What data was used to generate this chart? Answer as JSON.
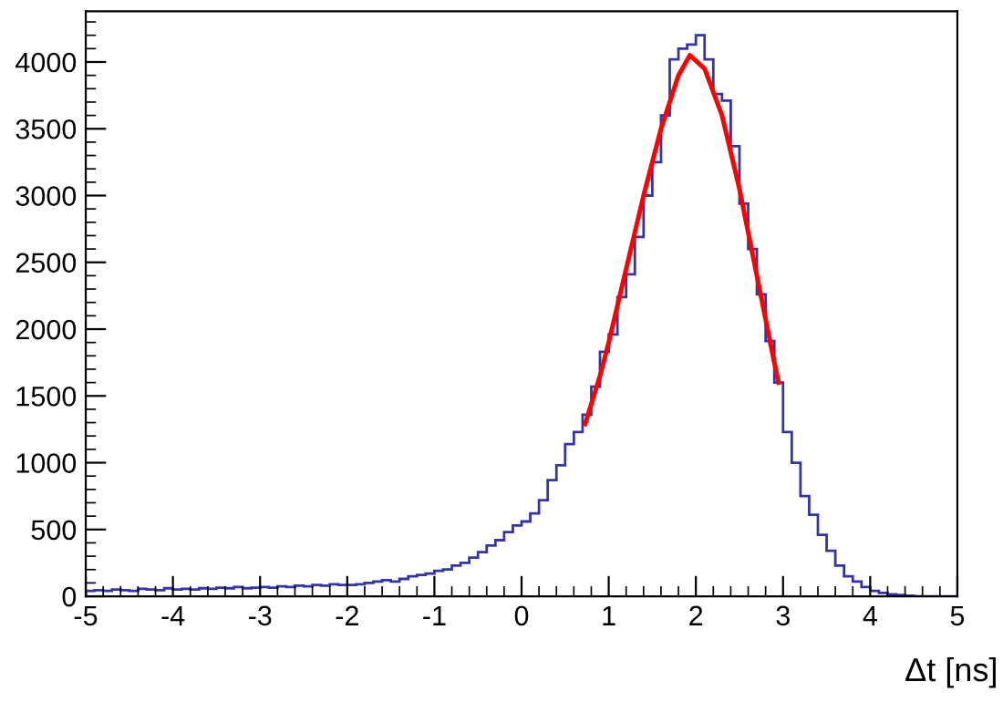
{
  "chart_data": {
    "type": "histogram",
    "xlabel": "Δt [ns]",
    "color": "#3434a4",
    "bins": [
      -5.0,
      -4.9,
      -4.8,
      -4.7,
      -4.6,
      -4.5,
      -4.4,
      -4.3,
      -4.2,
      -4.1,
      -4.0,
      -3.9,
      -3.8,
      -3.7,
      -3.6,
      -3.5,
      -3.4,
      -3.3,
      -3.2,
      -3.1,
      -3.0,
      -2.9,
      -2.8,
      -2.7,
      -2.6,
      -2.5,
      -2.4,
      -2.3,
      -2.2,
      -2.1,
      -2.0,
      -1.9,
      -1.8,
      -1.7,
      -1.6,
      -1.5,
      -1.4,
      -1.3,
      -1.2,
      -1.1,
      -1.0,
      -0.9,
      -0.8,
      -0.7,
      -0.6,
      -0.5,
      -0.4,
      -0.3,
      -0.2,
      -0.1,
      0.0,
      0.1,
      0.2,
      0.3,
      0.4,
      0.5,
      0.6,
      0.7,
      0.8,
      0.9,
      1.0,
      1.1,
      1.2,
      1.3,
      1.4,
      1.5,
      1.6,
      1.7,
      1.8,
      1.9,
      2.0,
      2.1,
      2.2,
      2.3,
      2.4,
      2.5,
      2.6,
      2.7,
      2.8,
      2.9,
      3.0,
      3.1,
      3.2,
      3.3,
      3.4,
      3.5,
      3.6,
      3.7,
      3.8,
      3.9,
      4.0,
      4.1,
      4.2,
      4.3,
      4.4,
      4.5,
      4.6,
      4.7,
      4.8,
      4.9,
      5.0
    ],
    "values": [
      40,
      45,
      40,
      50,
      45,
      40,
      55,
      50,
      45,
      60,
      50,
      55,
      50,
      60,
      55,
      65,
      60,
      70,
      60,
      65,
      70,
      65,
      75,
      70,
      80,
      75,
      85,
      80,
      90,
      85,
      85,
      90,
      100,
      110,
      120,
      110,
      130,
      150,
      160,
      170,
      190,
      200,
      230,
      250,
      290,
      330,
      380,
      420,
      480,
      530,
      560,
      620,
      720,
      870,
      980,
      1140,
      1230,
      1360,
      1570,
      1830,
      1960,
      2240,
      2410,
      2690,
      3000,
      3250,
      3600,
      4020,
      4100,
      4130,
      4200,
      4020,
      3760,
      3710,
      3370,
      2940,
      2600,
      2260,
      1910,
      1600,
      1230,
      1000,
      750,
      610,
      460,
      340,
      230,
      150,
      110,
      70,
      40,
      25,
      15,
      10,
      5,
      0,
      0,
      0,
      0,
      0
    ],
    "series": [
      {
        "type": "line",
        "color": "#ff0000",
        "x": [
          0.73,
          0.9,
          1.0,
          1.2,
          1.4,
          1.6,
          1.8,
          1.93,
          2.1,
          2.3,
          2.5,
          2.7,
          2.9,
          2.95
        ],
        "values": [
          1290,
          1650,
          1900,
          2450,
          3000,
          3500,
          3900,
          4050,
          3950,
          3600,
          3050,
          2400,
          1750,
          1600
        ]
      }
    ],
    "xlim": [
      -5,
      5
    ],
    "ylim": [
      0,
      4380
    ],
    "xticks": [
      -5,
      -4,
      -3,
      -2,
      -1,
      0,
      1,
      2,
      3,
      4,
      5
    ],
    "yticks": [
      0,
      500,
      1000,
      1500,
      2000,
      2500,
      3000,
      3500,
      4000
    ],
    "grid": false,
    "legend": false
  }
}
